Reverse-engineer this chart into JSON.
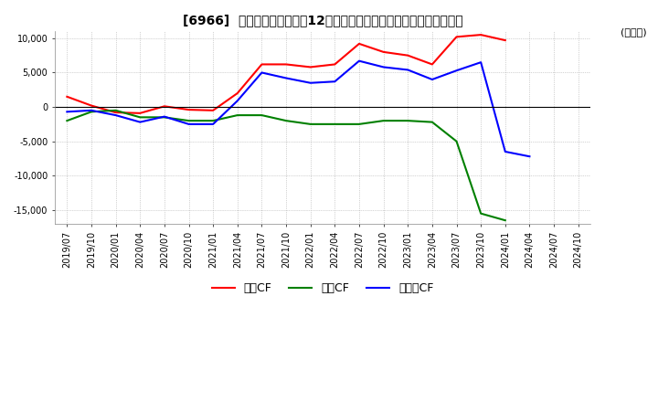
{
  "title": "[6966]  キャッシュフローの12か月移動合計の対前年同期増減額の推移",
  "ylabel": "(百万円)",
  "ylim": [
    -17000,
    11000
  ],
  "yticks": [
    -15000,
    -10000,
    -5000,
    0,
    5000,
    10000
  ],
  "legend_labels": [
    "営業CF",
    "投資CF",
    "フリーCF"
  ],
  "colors": {
    "op": "#ff0000",
    "inv": "#008000",
    "free": "#0000ff"
  },
  "x_labels": [
    "2019/07",
    "2019/10",
    "2020/01",
    "2020/04",
    "2020/07",
    "2020/10",
    "2021/01",
    "2021/04",
    "2021/07",
    "2021/10",
    "2022/01",
    "2022/04",
    "2022/07",
    "2022/10",
    "2023/01",
    "2023/04",
    "2023/07",
    "2023/10",
    "2024/01",
    "2024/04",
    "2024/07",
    "2024/10"
  ],
  "operating_cf": [
    1500,
    200,
    -800,
    -900,
    100,
    -400,
    -500,
    2000,
    6200,
    6200,
    5800,
    6200,
    9200,
    8000,
    7500,
    6200,
    10200,
    10500,
    9700,
    null,
    null,
    null
  ],
  "investing_cf": [
    -2000,
    -700,
    -500,
    -1500,
    -1500,
    -2000,
    -2000,
    -1200,
    -1200,
    -2000,
    -2500,
    -2500,
    -2500,
    -2000,
    -2000,
    -2200,
    -5000,
    -15500,
    -16500,
    null,
    null,
    null
  ],
  "free_cf": [
    -700,
    -500,
    -1200,
    -2200,
    -1400,
    -2500,
    -2500,
    900,
    5000,
    4200,
    3500,
    3700,
    6700,
    5800,
    5400,
    4000,
    5300,
    6500,
    -6500,
    -7200,
    null,
    null
  ]
}
